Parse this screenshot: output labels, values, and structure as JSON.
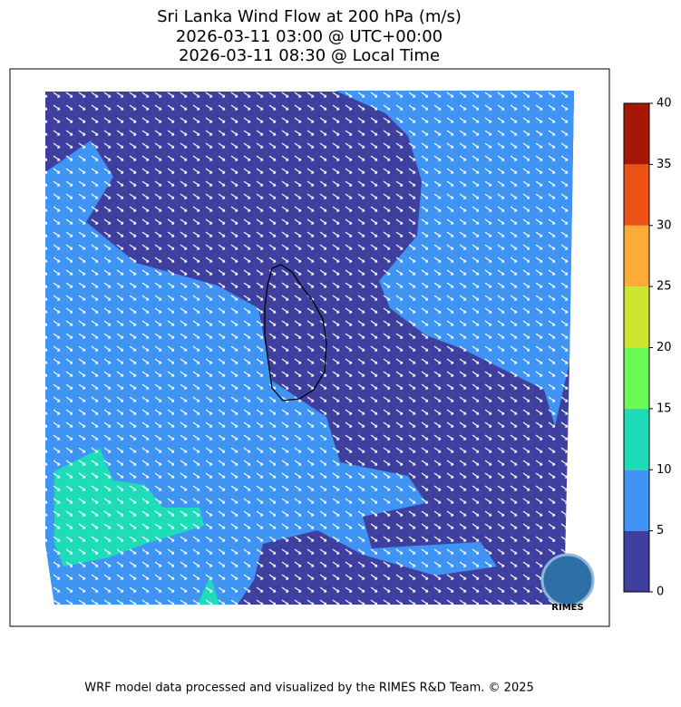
{
  "title": [
    "Sri Lanka Wind Flow at 200 hPa (m/s)",
    "2026-03-11 03:00 @ UTC+00:00",
    "2026-03-11 08:30 @ Local Time"
  ],
  "colorbar": {
    "ticks": [
      0,
      5,
      10,
      15,
      20,
      25,
      30,
      35,
      40
    ],
    "colors": [
      "#3f3fa0",
      "#4095f4",
      "#1fdcb9",
      "#6bfa58",
      "#cee52f",
      "#fbab36",
      "#ec5116",
      "#a51806"
    ]
  },
  "logo": "RIMES",
  "footer": "WRF model data processed and visualized by the RIMES R&D Team. © 2025"
}
